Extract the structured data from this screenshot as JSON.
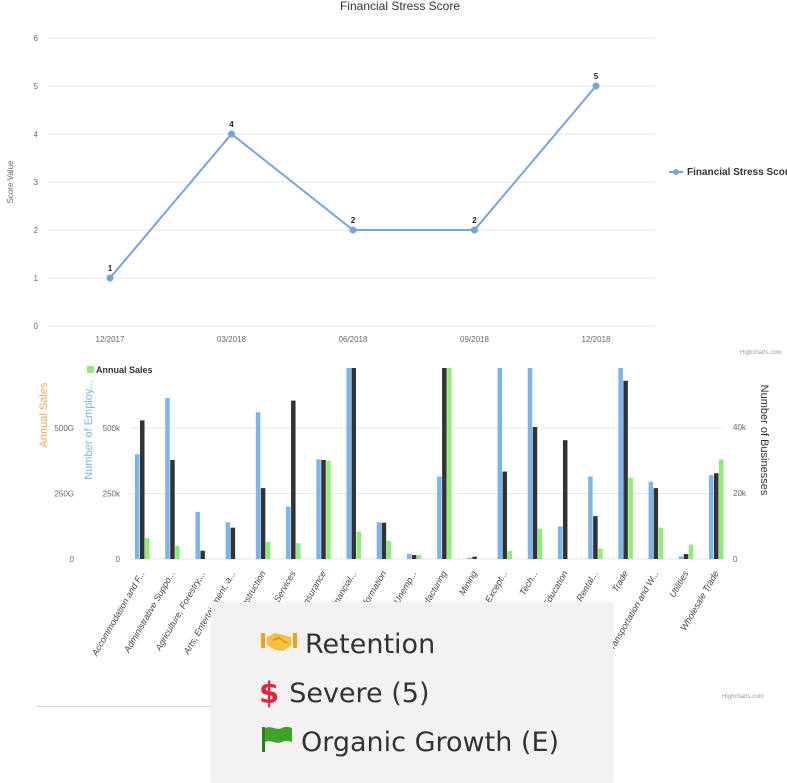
{
  "chart_data": [
    {
      "type": "line",
      "title": "Financial Stress Score",
      "ylabel": "Score Value",
      "categories": [
        "12/2017",
        "03/2018",
        "06/2018",
        "09/2018",
        "12/2018"
      ],
      "series": [
        {
          "name": "Financial Stress Scores",
          "values": [
            1,
            4,
            2,
            2,
            5
          ],
          "color": "#7aa3d8"
        }
      ],
      "ylim": [
        0,
        6
      ],
      "yticks": [
        0,
        1,
        2,
        3,
        4,
        5,
        6
      ],
      "legend": "right",
      "credit": "Highcharts.com",
      "grid": true
    },
    {
      "type": "bar",
      "categories": [
        "Accommodation and F...",
        "Administrative Suppo...",
        "Agriculture, Forestry,...",
        "Arts, Entertainment, a...",
        "Construction",
        "Other Services",
        "Insurance",
        "Financial...",
        "Information",
        "Unemp...",
        "Manufacturing",
        "Mining",
        "Except...",
        "Tech...",
        "Education",
        "Rental...",
        "Trade",
        "Transportation and W...",
        "Utilities",
        "Wholesale Trade"
      ],
      "series": [
        {
          "name": "Number of Employees",
          "axis": "left-inner",
          "color": "#7cb5ec",
          "values": [
            400000,
            615000,
            180000,
            140000,
            560000,
            200000,
            380000,
            900000,
            140000,
            20000,
            315000,
            5000,
            900000,
            900000,
            125000,
            315000,
            900000,
            295000,
            10000,
            320000
          ]
        },
        {
          "name": "Number of Businesses",
          "axis": "right",
          "color": "#333333",
          "values": [
            42000,
            30000,
            2500,
            9500,
            21500,
            48000,
            30000,
            80000,
            11000,
            1200,
            80000,
            700,
            26500,
            40000,
            36000,
            13000,
            54000,
            21500,
            1500,
            26000
          ]
        },
        {
          "name": "Annual Sales",
          "axis": "left-outer",
          "color": "#90ed7d",
          "values": [
            80000,
            50000,
            0,
            0,
            65000,
            60000,
            375000,
            105000,
            70000,
            15000,
            900000,
            0,
            30000,
            115000,
            0,
            40000,
            310000,
            120000,
            55000,
            380000
          ]
        }
      ],
      "y_left_outer": {
        "label": "Annual Sales",
        "ticks": [
          "0",
          "250G",
          "500G"
        ],
        "color": "#f7a35c"
      },
      "y_left_inner": {
        "label": "Number of Employ...",
        "ticks": [
          "0",
          "250k",
          "500k"
        ],
        "color": "#7cb5ec"
      },
      "y_right": {
        "label": "Number of Businesses",
        "ticks": [
          "0",
          "20k",
          "40k"
        ],
        "color": "#333333"
      },
      "legend_visible": "Annual Sales",
      "credit": "Highcharts.com"
    }
  ],
  "popup": {
    "items": [
      {
        "icon": "handshake-icon",
        "label": "Retention"
      },
      {
        "icon": "dollar-icon",
        "symbol": "$",
        "label": "Severe (5)"
      },
      {
        "icon": "flag-icon",
        "label": "Organic Growth (E)"
      }
    ]
  }
}
